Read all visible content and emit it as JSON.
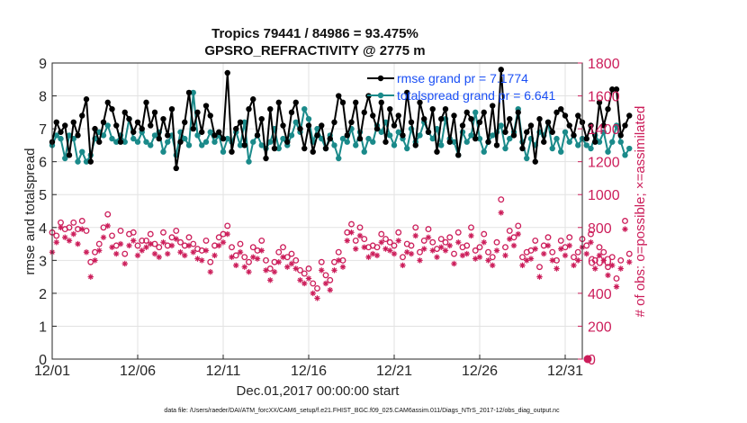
{
  "chart_data": {
    "type": "line",
    "title": "Tropics 79441 / 84986 = 93.475%",
    "subtitle": "GPSRO_REFRACTIVITY @ 2775 m",
    "xlabel": "Dec.01,2017 00:00:00 start",
    "ylabel_left": "rmse and totalspread",
    "ylabel_right": "# of obs: o=possible; ×=assimilated",
    "footnote": "data file: /Users/raeder/DAI/ATM_forcXX/CAM6_setup/f.e21.FHIST_BGC.f09_025.CAM6assim.011/Diags_NTrS_2017-12/obs_diag_output.nc",
    "x_ticks": [
      {
        "x": 1,
        "label": "12/01"
      },
      {
        "x": 6,
        "label": "12/06"
      },
      {
        "x": 11,
        "label": "12/11"
      },
      {
        "x": 16,
        "label": "12/16"
      },
      {
        "x": 21,
        "label": "12/21"
      },
      {
        "x": 26,
        "label": "12/26"
      },
      {
        "x": 31,
        "label": "12/31"
      }
    ],
    "xlim": [
      1,
      32
    ],
    "ylim_left": [
      0,
      9
    ],
    "yticks_left": [
      "0",
      "1",
      "2",
      "3",
      "4",
      "5",
      "6",
      "7",
      "8",
      "9"
    ],
    "ylim_right": [
      0,
      1800
    ],
    "yticks_right": [
      "0",
      "200",
      "400",
      "600",
      "800",
      "1000",
      "1200",
      "1400",
      "1600",
      "1800"
    ],
    "colors": {
      "rmse": "#000000",
      "spread": "#1a8a8a",
      "obs": "#cc1d5a",
      "legend_text": "#1a4ff5",
      "grid": "#e2e2e2"
    },
    "x_start": 1.0,
    "x_step": 0.25,
    "series": [
      {
        "name": "rmse grand pr = 7.1774",
        "axis": "left",
        "values": [
          6.6,
          7.2,
          6.9,
          7.1,
          6.2,
          7.2,
          6.8,
          7.4,
          7.9,
          6.0,
          7.0,
          6.6,
          7.2,
          7.8,
          7.6,
          7.1,
          6.6,
          7.5,
          7.3,
          6.9,
          7.2,
          7.0,
          7.8,
          7.1,
          7.5,
          6.7,
          7.3,
          6.8,
          7.6,
          5.8,
          6.6,
          7.2,
          8.1,
          7.0,
          7.5,
          6.9,
          7.7,
          7.4,
          6.8,
          6.9,
          6.7,
          8.7,
          6.3,
          7.0,
          7.2,
          6.5,
          7.6,
          7.9,
          6.8,
          7.3,
          6.1,
          7.6,
          6.4,
          7.8,
          7.1,
          6.6,
          7.5,
          7.8,
          7.0,
          6.4,
          7.1,
          6.3,
          6.8,
          7.1,
          6.4,
          6.7,
          7.2,
          8.0,
          7.8,
          6.8,
          7.2,
          7.8,
          6.7,
          7.5,
          8.0,
          7.4,
          7.0,
          7.8,
          6.6,
          7.6,
          7.1,
          7.4,
          6.8,
          8.1,
          7.2,
          6.5,
          7.8,
          7.3,
          6.9,
          7.6,
          6.3,
          7.3,
          7.6,
          6.6,
          7.4,
          6.2,
          7.1,
          7.5,
          7.3,
          6.7,
          7.2,
          7.5,
          6.6,
          7.7,
          6.5,
          8.8,
          6.9,
          7.3,
          6.8,
          7.5,
          6.4,
          6.9,
          7.1,
          6.0,
          7.3,
          6.6,
          7.2,
          6.9,
          7.5,
          7.6,
          7.4,
          7.1,
          6.8,
          7.4,
          7.2,
          6.7,
          7.1,
          6.6,
          7.8,
          7.1,
          7.6,
          8.2,
          8.2,
          6.8,
          7.1,
          7.4
        ]
      },
      {
        "name": "totalspread grand pr = 6.641",
        "axis": "left",
        "values": [
          6.5,
          6.8,
          6.7,
          6.1,
          6.8,
          6.7,
          6.0,
          6.3,
          6.0,
          6.2,
          6.7,
          6.9,
          6.8,
          7.1,
          6.7,
          6.6,
          6.8,
          6.6,
          7.3,
          6.7,
          6.6,
          6.9,
          6.6,
          6.5,
          6.8,
          6.9,
          6.3,
          6.6,
          6.8,
          6.2,
          6.9,
          6.7,
          6.5,
          8.1,
          6.8,
          6.5,
          6.6,
          6.9,
          6.6,
          6.8,
          6.3,
          6.7,
          6.6,
          6.9,
          6.5,
          7.2,
          6.0,
          6.6,
          6.8,
          6.5,
          6.4,
          6.6,
          7.0,
          6.4,
          6.7,
          6.5,
          6.8,
          7.2,
          6.9,
          7.6,
          7.3,
          6.6,
          7.0,
          6.7,
          6.4,
          6.8,
          6.5,
          6.1,
          6.7,
          6.6,
          7.0,
          6.5,
          6.9,
          6.3,
          6.7,
          6.6,
          7.1,
          6.9,
          7.2,
          6.8,
          6.5,
          6.9,
          6.7,
          6.4,
          7.0,
          6.6,
          6.8,
          7.2,
          6.9,
          6.7,
          7.0,
          6.5,
          7.3,
          6.7,
          6.6,
          6.2,
          6.9,
          6.6,
          6.8,
          7.5,
          6.7,
          6.3,
          6.6,
          6.8,
          6.9,
          7.1,
          6.4,
          6.7,
          6.9,
          7.6,
          6.6,
          6.1,
          6.7,
          6.5,
          6.9,
          6.8,
          7.2,
          6.4,
          6.7,
          6.3,
          6.9,
          6.6,
          6.8,
          6.5,
          6.7,
          6.5,
          6.4,
          6.8,
          6.6,
          6.9,
          6.3,
          6.6,
          7.1,
          6.6,
          6.2,
          6.4
        ]
      },
      {
        "name": "possible",
        "axis": "right",
        "values": [
          770,
          750,
          830,
          790,
          800,
          830,
          790,
          840,
          780,
          590,
          650,
          700,
          800,
          880,
          750,
          690,
          780,
          640,
          760,
          770,
          690,
          720,
          720,
          760,
          700,
          680,
          770,
          690,
          740,
          780,
          710,
          690,
          740,
          700,
          670,
          660,
          720,
          590,
          690,
          740,
          760,
          810,
          680,
          630,
          700,
          620,
          590,
          680,
          660,
          720,
          600,
          550,
          590,
          650,
          680,
          620,
          640,
          600,
          540,
          520,
          550,
          460,
          430,
          590,
          510,
          480,
          590,
          650,
          600,
          770,
          820,
          720,
          800,
          730,
          680,
          690,
          680,
          760,
          730,
          710,
          690,
          770,
          620,
          700,
          690,
          800,
          650,
          720,
          790,
          710,
          670,
          730,
          710,
          740,
          640,
          770,
          680,
          690,
          800,
          660,
          680,
          760,
          650,
          620,
          710,
          970,
          680,
          780,
          740,
          810,
          620,
          650,
          660,
          720,
          560,
          690,
          740,
          650,
          600,
          720,
          680,
          740,
          620,
          650,
          730,
          690,
          760,
          600,
          680,
          650,
          560,
          620,
          490,
          600,
          840,
          640
        ]
      },
      {
        "name": "assimilated",
        "axis": "right",
        "values": [
          650,
          710,
          800,
          740,
          720,
          760,
          700,
          790,
          650,
          500,
          600,
          660,
          740,
          810,
          680,
          640,
          700,
          580,
          690,
          720,
          630,
          660,
          680,
          700,
          640,
          620,
          710,
          640,
          690,
          730,
          650,
          630,
          690,
          650,
          610,
          600,
          660,
          530,
          630,
          690,
          710,
          760,
          620,
          570,
          650,
          560,
          530,
          620,
          610,
          660,
          540,
          480,
          530,
          590,
          620,
          560,
          580,
          550,
          480,
          460,
          490,
          400,
          370,
          540,
          460,
          420,
          540,
          600,
          560,
          720,
          770,
          670,
          750,
          680,
          620,
          640,
          630,
          710,
          670,
          660,
          640,
          720,
          570,
          650,
          640,
          750,
          600,
          670,
          740,
          660,
          620,
          680,
          660,
          690,
          580,
          710,
          630,
          640,
          750,
          610,
          620,
          710,
          600,
          570,
          660,
          890,
          630,
          730,
          690,
          760,
          570,
          600,
          610,
          670,
          500,
          640,
          690,
          600,
          550,
          670,
          630,
          690,
          570,
          600,
          680,
          640,
          710,
          550,
          630,
          600,
          510,
          570,
          440,
          550,
          790,
          590
        ]
      }
    ],
    "zero_point_label": "0"
  }
}
